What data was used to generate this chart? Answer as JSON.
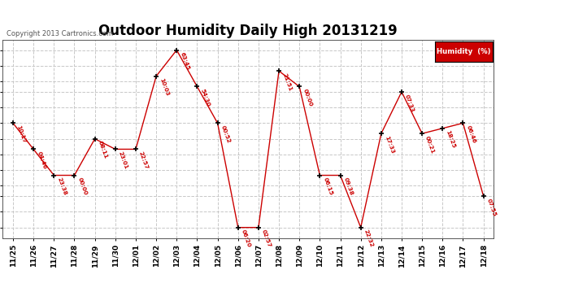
{
  "title": "Outdoor Humidity Daily High 20131219",
  "copyright": "Copyright 2013 Cartronics.com",
  "legend_label": "Humidity  (%)",
  "x_labels": [
    "11/25",
    "11/26",
    "11/27",
    "11/28",
    "11/29",
    "11/30",
    "12/01",
    "12/02",
    "12/03",
    "12/04",
    "12/05",
    "12/06",
    "12/07",
    "12/08",
    "12/09",
    "12/10",
    "12/11",
    "12/12",
    "12/13",
    "12/14",
    "12/15",
    "12/16",
    "12/17",
    "12/18"
  ],
  "y_values": [
    86,
    81,
    76,
    76,
    83,
    81,
    81,
    95,
    100,
    93,
    86,
    66,
    66,
    96,
    93,
    76,
    76,
    66,
    84,
    92,
    84,
    85,
    86,
    72
  ],
  "time_labels": [
    "10:17",
    "04:46",
    "23:38",
    "00:00",
    "08:11",
    "23:01",
    "22:57",
    "10:03",
    "63:45",
    "54:30",
    "00:52",
    "06:20",
    "02:57",
    "21:51",
    "00:00",
    "06:15",
    "09:38",
    "22:32",
    "17:33",
    "07:33",
    "00:21",
    "18:25",
    "06:46",
    "07:55"
  ],
  "line_color": "#cc0000",
  "marker_color": "#000000",
  "bg_color": "#ffffff",
  "grid_color": "#c8c8c8",
  "ylim_min": 64,
  "ylim_max": 102,
  "yticks": [
    66,
    69,
    72,
    74,
    77,
    80,
    83,
    86,
    89,
    92,
    94,
    97,
    100
  ],
  "annotation_color": "#cc0000",
  "title_fontsize": 12,
  "legend_bg": "#cc0000",
  "legend_text_color": "#ffffff"
}
